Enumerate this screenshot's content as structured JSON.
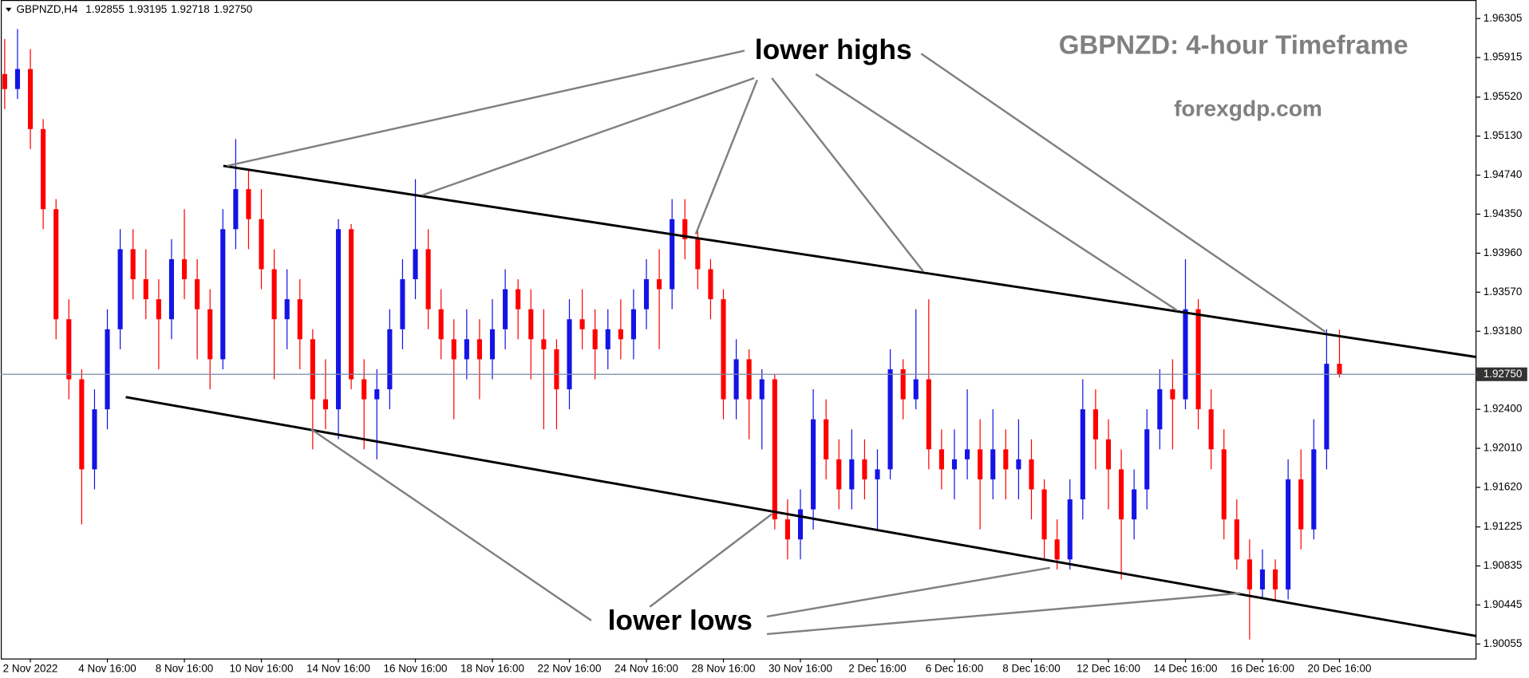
{
  "chart_data": {
    "type": "candlestick",
    "title": "GBPNZD: 4-hour Timeframe",
    "subtitle": "forexgdp.com",
    "symbol": "GBPNZD,H4",
    "header_labels": [
      "1.92855",
      "1.93195",
      "1.92718",
      "1.92750"
    ],
    "annotations": [
      "lower highs",
      "lower lows"
    ],
    "up_color": "#1414e6",
    "down_color": "#ff0000",
    "ylim": [
      1.8991,
      1.9649
    ],
    "yticks": [
      1.96305,
      1.95915,
      {
        "value": 1.9552,
        "label": "1.95520"
      },
      {
        "value": 1.9513,
        "label": "1.95130"
      },
      {
        "value": 1.9474,
        "label": "1.94740"
      },
      {
        "value": 1.9435,
        "label": "1.94350"
      },
      {
        "value": 1.9396,
        "label": "1.93960"
      },
      {
        "value": 1.9357,
        "label": "1.93570"
      },
      {
        "value": 1.9318,
        "label": "1.93180"
      },
      {
        "value": 1.924,
        "label": "1.92400"
      },
      {
        "value": 1.9201,
        "label": "1.92010"
      },
      {
        "value": 1.9162,
        "label": "1.91620"
      },
      1.91225,
      1.90835,
      1.90445,
      1.90055
    ],
    "current_price": {
      "value": 1.9275,
      "label": "1.92750"
    },
    "categories": [
      null,
      null,
      "2 Nov 2022",
      null,
      null,
      null,
      null,
      null,
      "4 Nov 16:00",
      null,
      null,
      null,
      null,
      null,
      "8 Nov 16:00",
      null,
      null,
      null,
      null,
      null,
      "10 Nov 16:00",
      null,
      null,
      null,
      null,
      null,
      "14 Nov 16:00",
      null,
      null,
      null,
      null,
      null,
      "16 Nov 16:00",
      null,
      null,
      null,
      null,
      null,
      "18 Nov 16:00",
      null,
      null,
      null,
      null,
      null,
      "22 Nov 16:00",
      null,
      null,
      null,
      null,
      null,
      "24 Nov 16:00",
      null,
      null,
      null,
      null,
      null,
      "28 Nov 16:00",
      null,
      null,
      null,
      null,
      null,
      "30 Nov 16:00",
      null,
      null,
      null,
      null,
      null,
      "2 Dec 16:00",
      null,
      null,
      null,
      null,
      null,
      "6 Dec 16:00",
      null,
      null,
      null,
      null,
      null,
      "8 Dec 16:00",
      null,
      null,
      null,
      null,
      null,
      "12 Dec 16:00",
      null,
      null,
      null,
      null,
      null,
      "14 Dec 16:00",
      null,
      null,
      null,
      null,
      null,
      "16 Dec 16:00",
      null,
      null,
      null,
      null,
      null,
      "20 Dec 16:00"
    ],
    "ohlc": [
      [
        1.9575,
        1.961,
        1.954,
        1.956
      ],
      [
        1.956,
        1.962,
        1.955,
        1.958
      ],
      [
        1.958,
        1.96,
        1.95,
        1.952
      ],
      [
        1.952,
        1.953,
        1.942,
        1.944
      ],
      [
        1.944,
        1.945,
        1.931,
        1.933
      ],
      [
        1.933,
        1.935,
        1.925,
        1.927
      ],
      [
        1.927,
        1.928,
        1.9125,
        1.918
      ],
      [
        1.918,
        1.926,
        1.916,
        1.924
      ],
      [
        1.924,
        1.934,
        1.922,
        1.932
      ],
      [
        1.932,
        1.942,
        1.93,
        1.94
      ],
      [
        1.94,
        1.942,
        1.935,
        1.937
      ],
      [
        1.937,
        1.94,
        1.933,
        1.935
      ],
      [
        1.935,
        1.937,
        1.928,
        1.933
      ],
      [
        1.933,
        1.941,
        1.931,
        1.939
      ],
      [
        1.939,
        1.944,
        1.935,
        1.937
      ],
      [
        1.937,
        1.939,
        1.929,
        1.934
      ],
      [
        1.934,
        1.936,
        1.926,
        1.929
      ],
      [
        1.929,
        1.944,
        1.928,
        1.942
      ],
      [
        1.942,
        1.951,
        1.94,
        1.946
      ],
      [
        1.946,
        1.948,
        1.94,
        1.943
      ],
      [
        1.943,
        1.946,
        1.936,
        1.938
      ],
      [
        1.938,
        1.94,
        1.927,
        1.933
      ],
      [
        1.933,
        1.938,
        1.93,
        1.935
      ],
      [
        1.935,
        1.937,
        1.928,
        1.931
      ],
      [
        1.931,
        1.932,
        1.92,
        1.925
      ],
      [
        1.925,
        1.929,
        1.922,
        1.924
      ],
      [
        1.924,
        1.943,
        1.921,
        1.942
      ],
      [
        1.942,
        1.9425,
        1.926,
        1.927
      ],
      [
        1.927,
        1.929,
        1.92,
        1.925
      ],
      [
        1.925,
        1.928,
        1.919,
        1.926
      ],
      [
        1.926,
        1.934,
        1.924,
        1.932
      ],
      [
        1.932,
        1.939,
        1.93,
        1.937
      ],
      [
        1.937,
        1.947,
        1.935,
        1.94
      ],
      [
        1.94,
        1.942,
        1.932,
        1.934
      ],
      [
        1.934,
        1.936,
        1.929,
        1.931
      ],
      [
        1.931,
        1.933,
        1.923,
        1.929
      ],
      [
        1.929,
        1.934,
        1.927,
        1.931
      ],
      [
        1.931,
        1.933,
        1.925,
        1.929
      ],
      [
        1.929,
        1.935,
        1.927,
        1.932
      ],
      [
        1.932,
        1.938,
        1.93,
        1.936
      ],
      [
        1.936,
        1.937,
        1.931,
        1.934
      ],
      [
        1.934,
        1.936,
        1.927,
        1.931
      ],
      [
        1.931,
        1.934,
        1.922,
        1.93
      ],
      [
        1.93,
        1.931,
        1.922,
        1.926
      ],
      [
        1.926,
        1.935,
        1.924,
        1.933
      ],
      [
        1.933,
        1.936,
        1.93,
        1.932
      ],
      [
        1.932,
        1.934,
        1.927,
        1.93
      ],
      [
        1.93,
        1.934,
        1.928,
        1.932
      ],
      [
        1.932,
        1.935,
        1.929,
        1.931
      ],
      [
        1.931,
        1.936,
        1.929,
        1.934
      ],
      [
        1.934,
        1.939,
        1.932,
        1.937
      ],
      [
        1.937,
        1.94,
        1.93,
        1.936
      ],
      [
        1.936,
        1.945,
        1.934,
        1.943
      ],
      [
        1.943,
        1.945,
        1.939,
        1.941
      ],
      [
        1.941,
        1.942,
        1.936,
        1.938
      ],
      [
        1.938,
        1.939,
        1.933,
        1.935
      ],
      [
        1.935,
        1.936,
        1.923,
        1.925
      ],
      [
        1.925,
        1.931,
        1.923,
        1.929
      ],
      [
        1.929,
        1.93,
        1.921,
        1.925
      ],
      [
        1.925,
        1.928,
        1.92,
        1.927
      ],
      [
        1.927,
        1.9275,
        1.912,
        1.913
      ],
      [
        1.913,
        1.915,
        1.909,
        1.911
      ],
      [
        1.911,
        1.916,
        1.909,
        1.914
      ],
      [
        1.914,
        1.926,
        1.912,
        1.923
      ],
      [
        1.923,
        1.925,
        1.917,
        1.919
      ],
      [
        1.919,
        1.921,
        1.914,
        1.916
      ],
      [
        1.916,
        1.922,
        1.914,
        1.919
      ],
      [
        1.919,
        1.921,
        1.915,
        1.917
      ],
      [
        1.917,
        1.92,
        1.912,
        1.918
      ],
      [
        1.918,
        1.93,
        1.917,
        1.928
      ],
      [
        1.928,
        1.929,
        1.923,
        1.925
      ],
      [
        1.925,
        1.934,
        1.924,
        1.927
      ],
      [
        1.927,
        1.935,
        1.918,
        1.92
      ],
      [
        1.92,
        1.922,
        1.916,
        1.918
      ],
      [
        1.918,
        1.922,
        1.915,
        1.919
      ],
      [
        1.919,
        1.926,
        1.917,
        1.92
      ],
      [
        1.92,
        1.923,
        1.912,
        1.917
      ],
      [
        1.917,
        1.924,
        1.915,
        1.92
      ],
      [
        1.92,
        1.922,
        1.915,
        1.918
      ],
      [
        1.918,
        1.923,
        1.915,
        1.919
      ],
      [
        1.919,
        1.921,
        1.913,
        1.916
      ],
      [
        1.916,
        1.917,
        1.909,
        1.911
      ],
      [
        1.911,
        1.913,
        1.908,
        1.909
      ],
      [
        1.909,
        1.917,
        1.908,
        1.915
      ],
      [
        1.915,
        1.927,
        1.913,
        1.924
      ],
      [
        1.924,
        1.926,
        1.918,
        1.921
      ],
      [
        1.921,
        1.923,
        1.914,
        1.918
      ],
      [
        1.918,
        1.92,
        1.907,
        1.913
      ],
      [
        1.913,
        1.918,
        1.911,
        1.916
      ],
      [
        1.916,
        1.924,
        1.914,
        1.922
      ],
      [
        1.922,
        1.928,
        1.92,
        1.926
      ],
      [
        1.926,
        1.929,
        1.92,
        1.925
      ],
      [
        1.925,
        1.939,
        1.924,
        1.934
      ],
      [
        1.934,
        1.935,
        1.922,
        1.924
      ],
      [
        1.924,
        1.926,
        1.918,
        1.92
      ],
      [
        1.92,
        1.922,
        1.911,
        1.913
      ],
      [
        1.913,
        1.915,
        1.908,
        1.909
      ],
      [
        1.909,
        1.911,
        1.901,
        1.906
      ],
      [
        1.906,
        1.91,
        1.905,
        1.908
      ],
      [
        1.908,
        1.909,
        1.905,
        1.906
      ],
      [
        1.906,
        1.919,
        1.905,
        1.917
      ],
      [
        1.917,
        1.92,
        1.91,
        1.912
      ],
      [
        1.912,
        1.923,
        1.911,
        1.92
      ],
      [
        1.92,
        1.932,
        1.918,
        1.92855
      ],
      [
        1.92855,
        1.93195,
        1.92718,
        1.9275
      ]
    ]
  }
}
